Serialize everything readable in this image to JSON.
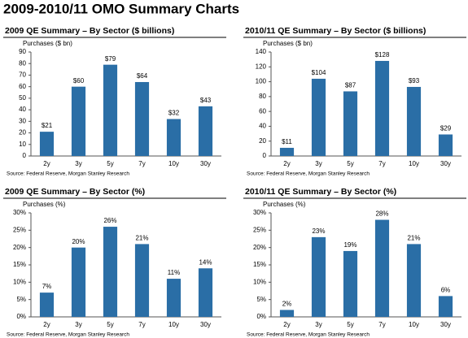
{
  "page_title": "2009-2010/11 OMO Summary Charts",
  "chart_data": [
    {
      "type": "bar",
      "title": "2009 QE Summary – By Sector ($ billions)",
      "ylabel": "Purchases ($ bn)",
      "source": "Source: Federal Reserve, Morgan Stanley Research",
      "categories": [
        "2y",
        "3y",
        "5y",
        "7y",
        "10y",
        "30y"
      ],
      "values": [
        21,
        60,
        79,
        64,
        32,
        43
      ],
      "value_labels": [
        "$21",
        "$60",
        "$79",
        "$64",
        "$32",
        "$43"
      ],
      "color": "#2a6ea6",
      "ylim": [
        0,
        90
      ],
      "yticks": [
        0,
        10,
        20,
        30,
        40,
        50,
        60,
        70,
        80,
        90
      ]
    },
    {
      "type": "bar",
      "title": "2010/11 QE Summary – By Sector ($ billions)",
      "ylabel": "Purchases ($ bn)",
      "source": "Source: Federal Reserve, Morgan Stanley Research",
      "categories": [
        "2y",
        "3y",
        "5y",
        "7y",
        "10y",
        "30y"
      ],
      "values": [
        11,
        104,
        87,
        128,
        93,
        29
      ],
      "value_labels": [
        "$11",
        "$104",
        "$87",
        "$128",
        "$93",
        "$29"
      ],
      "color": "#2a6ea6",
      "ylim": [
        0,
        140
      ],
      "yticks": [
        0,
        20,
        40,
        60,
        80,
        100,
        120,
        140
      ]
    },
    {
      "type": "bar",
      "title": "2009 QE Summary – By Sector (%)",
      "ylabel": "Purchases (%)",
      "source": "Source: Federal Reserve, Morgan Stanley Research",
      "categories": [
        "2y",
        "3y",
        "5y",
        "7y",
        "10y",
        "30y"
      ],
      "values": [
        7,
        20,
        26,
        21,
        11,
        14
      ],
      "value_labels": [
        "7%",
        "20%",
        "26%",
        "21%",
        "11%",
        "14%"
      ],
      "color": "#2a6ea6",
      "ylim": [
        0,
        30
      ],
      "yticks": [
        {
          "value": 0,
          "label": "0%"
        },
        {
          "value": 5,
          "label": "5%"
        },
        {
          "value": 10,
          "label": "10%"
        },
        {
          "value": 15,
          "label": "15%"
        },
        {
          "value": 20,
          "label": "20%"
        },
        {
          "value": 25,
          "label": "25%"
        },
        {
          "value": 30,
          "label": "30%"
        }
      ]
    },
    {
      "type": "bar",
      "title": "2010/11 QE Summary – By Sector (%)",
      "ylabel": "Purchases (%)",
      "source": "Source: Federal Reserve, Morgan Stanley Research",
      "categories": [
        "2y",
        "3y",
        "5y",
        "7y",
        "10y",
        "30y"
      ],
      "values": [
        2,
        23,
        19,
        28,
        21,
        6
      ],
      "value_labels": [
        "2%",
        "23%",
        "19%",
        "28%",
        "21%",
        "6%"
      ],
      "color": "#2a6ea6",
      "ylim": [
        0,
        30
      ],
      "yticks": [
        {
          "value": 0,
          "label": "0%"
        },
        {
          "value": 5,
          "label": "5%"
        },
        {
          "value": 10,
          "label": "10%"
        },
        {
          "value": 15,
          "label": "15%"
        },
        {
          "value": 20,
          "label": "20%"
        },
        {
          "value": 25,
          "label": "25%"
        },
        {
          "value": 30,
          "label": "30%"
        }
      ]
    }
  ]
}
